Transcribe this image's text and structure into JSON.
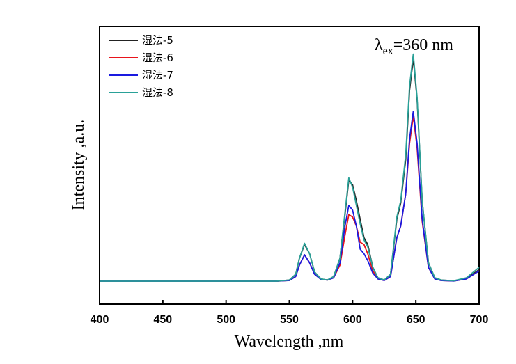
{
  "chart_data": {
    "type": "line",
    "x_label": "Wavelength ,nm",
    "y_label": "Intensity ,a.u.",
    "annotation": {
      "base": "λ",
      "sub": "ex",
      "rest": "=360 nm"
    },
    "legend": "upper left",
    "xlim": [
      400,
      700
    ],
    "xticks": [
      400,
      450,
      500,
      550,
      600,
      650,
      700
    ],
    "ylim": [
      -10,
      111
    ],
    "x": [
      400,
      450,
      500,
      540,
      550,
      555,
      558,
      562,
      566,
      570,
      575,
      580,
      585,
      590,
      594,
      597,
      600,
      603,
      606,
      609,
      612,
      616,
      620,
      625,
      630,
      635,
      638,
      642,
      645,
      648,
      651,
      655,
      660,
      665,
      670,
      680,
      690,
      700
    ],
    "series": [
      {
        "name": "湿法-5",
        "color": "#222222",
        "values": [
          0,
          0,
          0,
          0,
          0.5,
          3,
          10,
          16,
          12,
          4,
          1,
          0.5,
          2,
          10,
          29,
          44,
          42,
          35,
          27,
          19,
          16,
          6,
          1.5,
          0.5,
          3,
          27,
          34,
          53,
          83,
          97,
          79,
          35,
          8,
          1.5,
          0.5,
          0.2,
          1.2,
          5
        ]
      },
      {
        "name": "湿法-6",
        "color": "#e8141c",
        "values": [
          0,
          0,
          0,
          0,
          0.3,
          2,
          7,
          11.5,
          8,
          3,
          0.8,
          0.5,
          1.5,
          7,
          20,
          29,
          28,
          24,
          17,
          16,
          12,
          4.5,
          1,
          0.3,
          2,
          19,
          24,
          38,
          60,
          72,
          58,
          26,
          6,
          1,
          0.3,
          0.1,
          1,
          4.5
        ]
      },
      {
        "name": "湿法-7",
        "color": "#1a1ae0",
        "values": [
          0,
          0,
          0,
          0,
          0.3,
          2,
          7,
          11.5,
          8,
          3,
          0.8,
          0.5,
          1.5,
          8,
          24,
          33,
          31,
          24,
          14,
          12,
          9,
          3.5,
          1,
          0.3,
          2,
          19,
          24,
          38,
          62,
          74,
          60,
          27,
          6,
          1,
          0.3,
          0.1,
          1,
          4.5
        ]
      },
      {
        "name": "湿法-8",
        "color": "#2aa198",
        "values": [
          0,
          0,
          0,
          0,
          0.5,
          3,
          10,
          16.5,
          12,
          4,
          1,
          0.5,
          2,
          10,
          30,
          45,
          41,
          33,
          25,
          18,
          15,
          6,
          1.5,
          0.5,
          3,
          28,
          35,
          55,
          85,
          99,
          80,
          35,
          8,
          1.5,
          0.5,
          0.2,
          1.5,
          6
        ]
      }
    ]
  }
}
